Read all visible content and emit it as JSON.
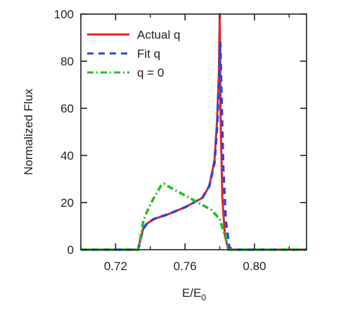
{
  "chart_data": {
    "type": "line",
    "title": "",
    "xlabel": "E/E",
    "xlabel_sub": "0",
    "ylabel": "Normalized Flux",
    "xlim": [
      0.7,
      0.83
    ],
    "ylim": [
      0,
      100
    ],
    "xticks": [
      0.72,
      0.76,
      0.8
    ],
    "yticks": [
      0,
      20,
      40,
      60,
      80,
      100
    ],
    "grid": false,
    "legend_position": "top-left",
    "series": [
      {
        "name": "Actual q",
        "color": "#e8202a",
        "style": "solid",
        "x": [
          0.7,
          0.733,
          0.7345,
          0.736,
          0.738,
          0.742,
          0.75,
          0.76,
          0.77,
          0.774,
          0.777,
          0.7785,
          0.7795,
          0.78,
          0.7805,
          0.7815,
          0.783,
          0.785,
          0.787,
          0.83
        ],
        "y": [
          0,
          0,
          5,
          9,
          11,
          13,
          15,
          18,
          22,
          27,
          38,
          55,
          75,
          100,
          55,
          22,
          6,
          0,
          0,
          0
        ]
      },
      {
        "name": "Fit q",
        "color": "#2848d8",
        "style": "dashed",
        "x": [
          0.7,
          0.733,
          0.7345,
          0.736,
          0.738,
          0.742,
          0.75,
          0.76,
          0.77,
          0.774,
          0.777,
          0.7785,
          0.7795,
          0.7803,
          0.781,
          0.782,
          0.7835,
          0.7855,
          0.7875,
          0.83
        ],
        "y": [
          0,
          0,
          5,
          9,
          11,
          13,
          15,
          18,
          22,
          27,
          37,
          52,
          70,
          88,
          65,
          35,
          12,
          1,
          0,
          0
        ]
      },
      {
        "name": "q = 0",
        "color": "#22c022",
        "style": "dashdot",
        "x": [
          0.7,
          0.733,
          0.7345,
          0.736,
          0.738,
          0.742,
          0.746,
          0.748,
          0.75,
          0.755,
          0.76,
          0.765,
          0.77,
          0.775,
          0.78,
          0.783,
          0.785,
          0.787,
          0.83
        ],
        "y": [
          0,
          0,
          6,
          12,
          16,
          22,
          27,
          28,
          27,
          25,
          23,
          21,
          19,
          17,
          13,
          6,
          0,
          0,
          0
        ]
      }
    ]
  }
}
